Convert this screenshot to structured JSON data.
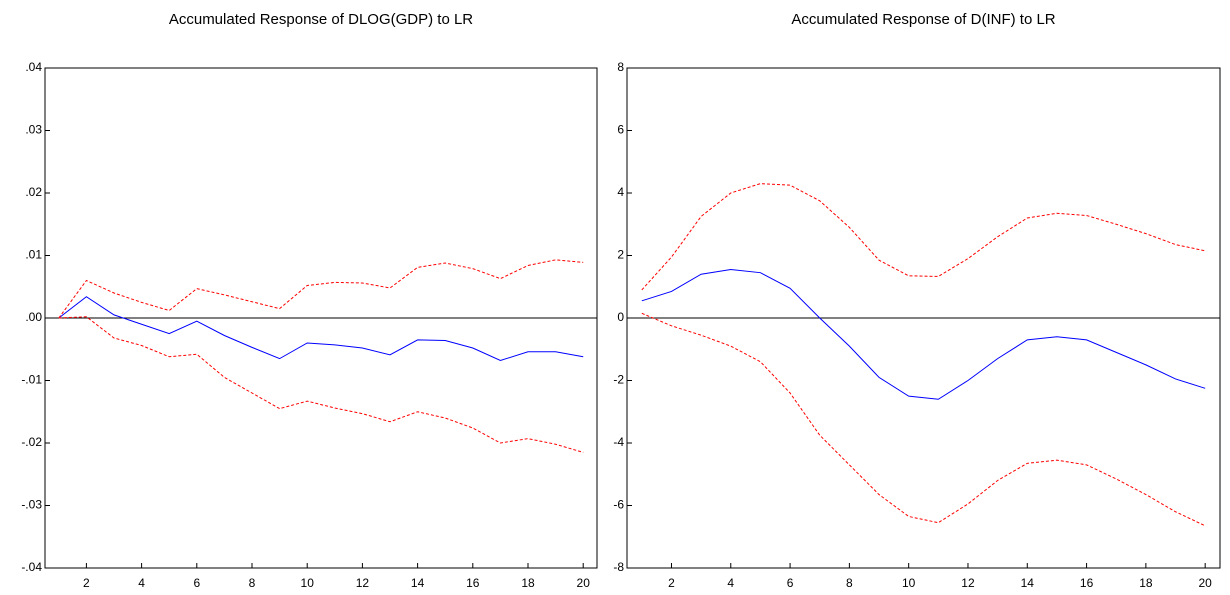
{
  "chart_data": [
    {
      "type": "line",
      "title": "Accumulated Response of DLOG(GDP) to LR",
      "x": [
        1,
        2,
        3,
        4,
        5,
        6,
        7,
        8,
        9,
        10,
        11,
        12,
        13,
        14,
        15,
        16,
        17,
        18,
        19,
        20
      ],
      "xlim": [
        0.5,
        20.5
      ],
      "xticks": [
        2,
        4,
        6,
        8,
        10,
        12,
        14,
        16,
        18,
        20
      ],
      "ylim": [
        -0.04,
        0.04
      ],
      "yticks": [
        {
          "value": -0.04,
          "label": "-.04"
        },
        {
          "value": -0.03,
          "label": "-.03"
        },
        {
          "value": -0.02,
          "label": "-.02"
        },
        {
          "value": -0.01,
          "label": "-.01"
        },
        {
          "value": 0,
          "label": ".00"
        },
        {
          "value": 0.01,
          "label": ".01"
        },
        {
          "value": 0.02,
          "label": ".02"
        },
        {
          "value": 0.03,
          "label": ".03"
        },
        {
          "value": 0.04,
          "label": ".04"
        }
      ],
      "zero_line": true,
      "series": [
        {
          "color": "#0000ff",
          "line_style": "solid",
          "values": [
            0,
            0.0034,
            0.0005,
            -0.001,
            -0.0025,
            -0.0005,
            -0.0028,
            -0.0047,
            -0.0065,
            -0.004,
            -0.0043,
            -0.0048,
            -0.0059,
            -0.0035,
            -0.0036,
            -0.0048,
            -0.0068,
            -0.0054,
            -0.0054,
            -0.0062
          ]
        },
        {
          "color": "#ff0000",
          "line_style": "dashed",
          "values": [
            0,
            0.006,
            0.004,
            0.0025,
            0.0012,
            0.0047,
            0.0037,
            0.0026,
            0.0015,
            0.0052,
            0.0057,
            0.0056,
            0.0048,
            0.0081,
            0.0088,
            0.0079,
            0.0063,
            0.0084,
            0.0093,
            0.0089
          ]
        },
        {
          "color": "#ff0000",
          "line_style": "dashed",
          "values": [
            0,
            0.0002,
            -0.0032,
            -0.0044,
            -0.0062,
            -0.0058,
            -0.0095,
            -0.012,
            -0.0145,
            -0.0133,
            -0.0144,
            -0.0153,
            -0.0166,
            -0.015,
            -0.016,
            -0.0176,
            -0.02,
            -0.0193,
            -0.0202,
            -0.0215
          ]
        }
      ]
    },
    {
      "type": "line",
      "title": "Accumulated Response of D(INF) to LR",
      "x": [
        1,
        2,
        3,
        4,
        5,
        6,
        7,
        8,
        9,
        10,
        11,
        12,
        13,
        14,
        15,
        16,
        17,
        18,
        19,
        20
      ],
      "xlim": [
        0.5,
        20.5
      ],
      "xticks": [
        2,
        4,
        6,
        8,
        10,
        12,
        14,
        16,
        18,
        20
      ],
      "ylim": [
        -8,
        8
      ],
      "yticks": [
        -8,
        -6,
        -4,
        -2,
        0,
        2,
        4,
        6,
        8
      ],
      "zero_line": true,
      "series": [
        {
          "color": "#0000ff",
          "line_style": "solid",
          "values": [
            0.55,
            0.85,
            1.4,
            1.55,
            1.45,
            0.95,
            0,
            -0.9,
            -1.9,
            -2.5,
            -2.6,
            -2.0,
            -1.3,
            -0.7,
            -0.6,
            -0.7,
            -1.1,
            -1.5,
            -1.95,
            -2.25
          ]
        },
        {
          "color": "#ff0000",
          "line_style": "dashed",
          "values": [
            0.9,
            1.95,
            3.25,
            4.0,
            4.3,
            4.25,
            3.75,
            2.9,
            1.85,
            1.35,
            1.33,
            1.9,
            2.6,
            3.2,
            3.35,
            3.28,
            3.0,
            2.7,
            2.35,
            2.15
          ]
        },
        {
          "color": "#ff0000",
          "line_style": "dashed",
          "values": [
            0.15,
            -0.25,
            -0.55,
            -0.9,
            -1.4,
            -2.4,
            -3.75,
            -4.7,
            -5.65,
            -6.35,
            -6.55,
            -5.95,
            -5.2,
            -4.65,
            -4.55,
            -4.7,
            -5.15,
            -5.65,
            -6.2,
            -6.65
          ]
        }
      ]
    }
  ]
}
